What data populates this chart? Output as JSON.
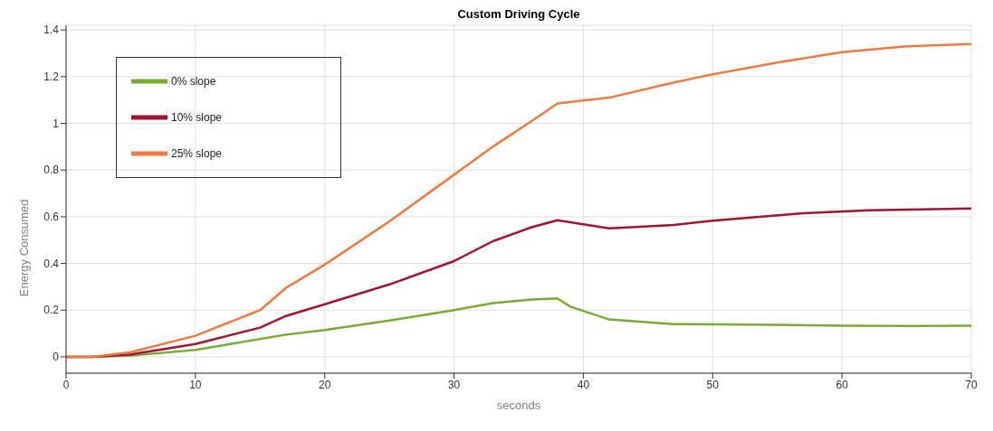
{
  "chart_data": {
    "type": "line",
    "title": "Custom Driving Cycle",
    "xlabel": "seconds",
    "ylabel": "Energy Consumed",
    "xlim": [
      0,
      70
    ],
    "xticks": [
      0,
      10,
      20,
      30,
      40,
      50,
      60,
      70
    ],
    "ylim": [
      -0.07,
      1.42
    ],
    "yticks": [
      0,
      0.2,
      0.4,
      0.6,
      0.8,
      1,
      1.2,
      1.4
    ],
    "grid": true,
    "legend": "top left",
    "marker": "none",
    "line_style": "solid",
    "series": [
      {
        "name": "0% slope",
        "color": "#77ac30",
        "x": [
          0,
          2,
          5,
          10,
          17,
          20,
          25,
          30,
          33,
          36,
          38,
          39,
          42,
          47,
          55,
          60,
          65,
          70
        ],
        "values": [
          0,
          0,
          0.005,
          0.03,
          0.095,
          0.115,
          0.155,
          0.2,
          0.23,
          0.245,
          0.25,
          0.215,
          0.16,
          0.14,
          0.137,
          0.133,
          0.132,
          0.133
        ]
      },
      {
        "name": "10% slope",
        "color": "#a2142f",
        "x": [
          0,
          2,
          5,
          10,
          15,
          17,
          20,
          25,
          30,
          33,
          36,
          38,
          42,
          47,
          50,
          57,
          62,
          70
        ],
        "values": [
          0,
          0,
          0.01,
          0.055,
          0.125,
          0.175,
          0.225,
          0.31,
          0.41,
          0.495,
          0.555,
          0.585,
          0.55,
          0.565,
          0.583,
          0.615,
          0.628,
          0.635
        ]
      },
      {
        "name": "25% slope",
        "color": "#f07b3f",
        "x": [
          0,
          2,
          5,
          10,
          15,
          17,
          20,
          25,
          30,
          33,
          36,
          38,
          42,
          47,
          50,
          55,
          60,
          65,
          70
        ],
        "values": [
          0,
          0,
          0.02,
          0.09,
          0.2,
          0.295,
          0.395,
          0.58,
          0.78,
          0.9,
          1.01,
          1.085,
          1.11,
          1.175,
          1.21,
          1.26,
          1.305,
          1.33,
          1.34
        ]
      }
    ]
  }
}
